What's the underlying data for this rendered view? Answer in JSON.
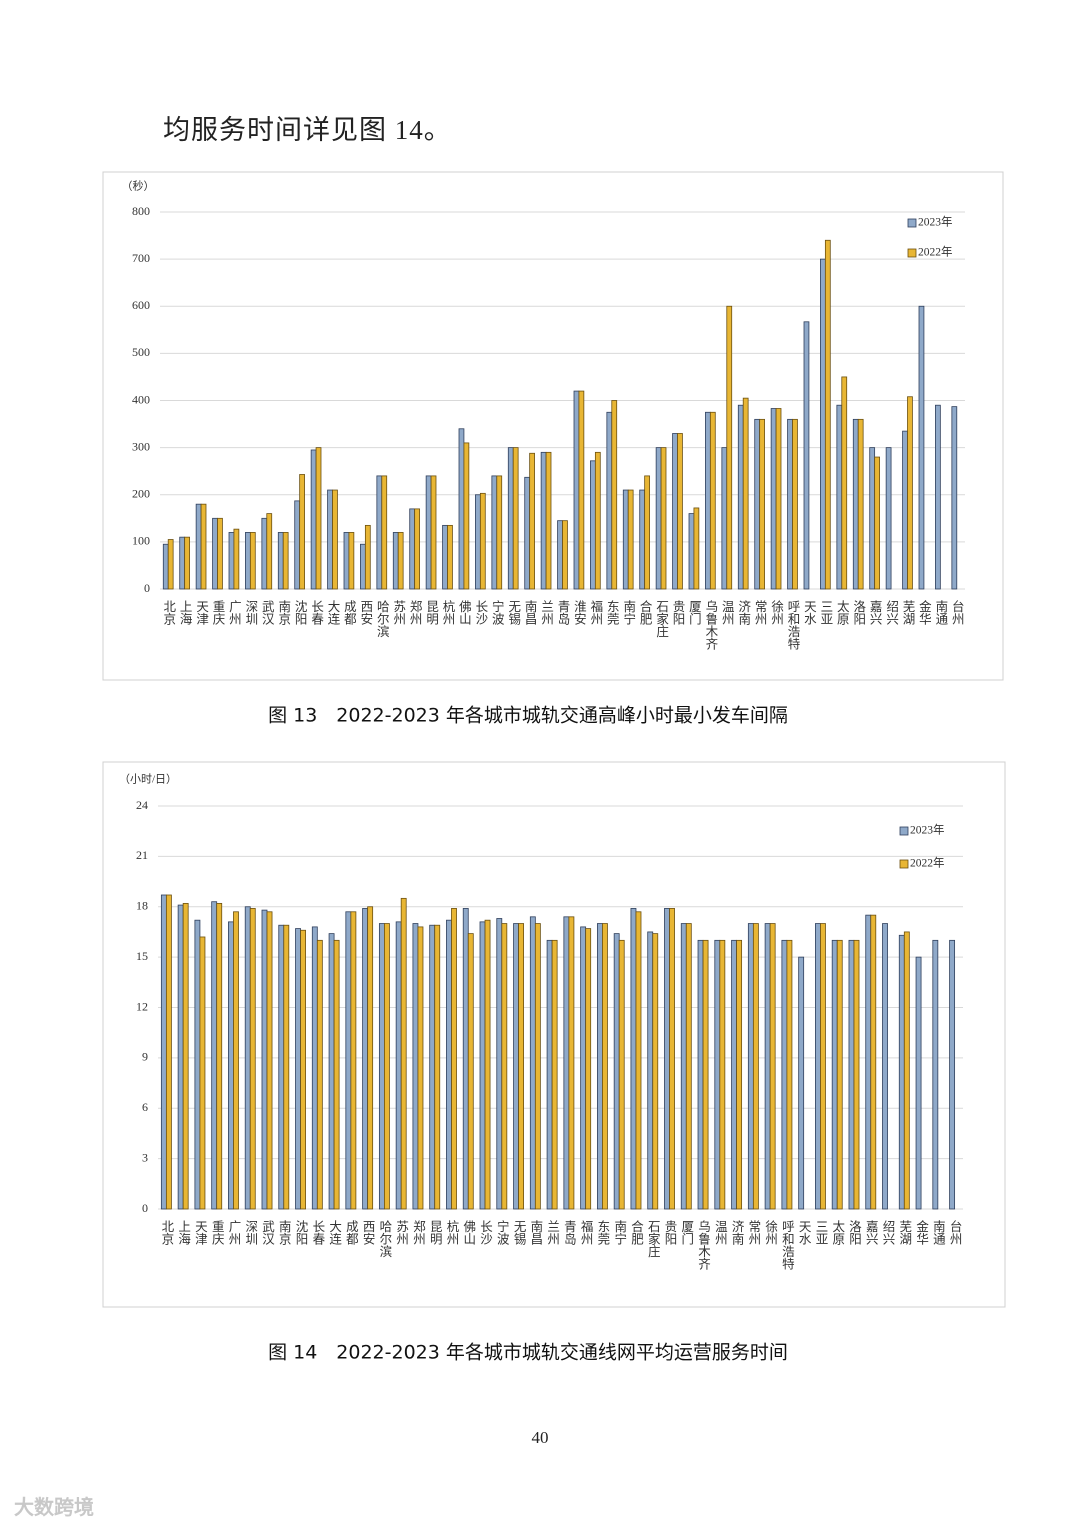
{
  "intro_text": "均服务时间详见图 14。",
  "page_number": "40",
  "watermark": "大数跨境",
  "chart_data": [
    {
      "type": "bar",
      "title": "图 13　2022-2023 年各城市城轨交通高峰小时最小发车间隔",
      "y_label": "（秒）",
      "categories": [
        "北京",
        "上海",
        "天津",
        "重庆",
        "广州",
        "深圳",
        "武汉",
        "南京",
        "沈阳",
        "长春",
        "大连",
        "成都",
        "西安",
        "哈尔滨",
        "苏州",
        "郑州",
        "昆明",
        "杭州",
        "佛山",
        "长沙",
        "宁波",
        "无锡",
        "南昌",
        "兰州",
        "青岛",
        "淮安",
        "福州",
        "东莞",
        "南宁",
        "合肥",
        "石家庄",
        "贵阳",
        "厦门",
        "乌鲁木齐",
        "温州",
        "济南",
        "常州",
        "徐州",
        "呼和浩特",
        "天水",
        "三亚",
        "太原",
        "洛阳",
        "嘉兴",
        "绍兴",
        "芜湖",
        "金华",
        "南通",
        "台州"
      ],
      "series": [
        {
          "name": "2023年",
          "color": "#8fa9c9",
          "values": [
            95,
            110,
            180,
            150,
            120,
            120,
            150,
            120,
            187,
            295,
            210,
            120,
            95,
            240,
            120,
            170,
            240,
            135,
            340,
            200,
            240,
            300,
            237,
            290,
            145,
            420,
            272,
            375,
            210,
            210,
            300,
            330,
            160,
            375,
            300,
            390,
            360,
            383,
            360,
            567,
            700,
            390,
            360,
            300,
            300,
            335,
            600,
            390,
            387
          ]
        },
        {
          "name": "2022年",
          "color": "#e8b634",
          "values": [
            105,
            110,
            180,
            150,
            127,
            120,
            160,
            120,
            243,
            300,
            210,
            120,
            135,
            240,
            120,
            170,
            240,
            135,
            310,
            203,
            240,
            300,
            288,
            290,
            145,
            420,
            290,
            400,
            210,
            240,
            300,
            330,
            172,
            375,
            600,
            405,
            360,
            383,
            360,
            null,
            740,
            450,
            360,
            280,
            null,
            408,
            null,
            null,
            null
          ]
        }
      ],
      "ylim": [
        0,
        800
      ],
      "yticks": [
        0,
        100,
        200,
        300,
        400,
        500,
        600,
        700,
        800
      ],
      "grid": true,
      "legend": "upper right"
    },
    {
      "type": "bar",
      "title": "图 14　2022-2023 年各城市城轨交通线网平均运营服务时间",
      "y_label": "（小时/日）",
      "categories": [
        "北京",
        "上海",
        "天津",
        "重庆",
        "广州",
        "深圳",
        "武汉",
        "南京",
        "沈阳",
        "长春",
        "大连",
        "成都",
        "西安",
        "哈尔滨",
        "苏州",
        "郑州",
        "昆明",
        "杭州",
        "佛山",
        "长沙",
        "宁波",
        "无锡",
        "南昌",
        "兰州",
        "青岛",
        "福州",
        "东莞",
        "南宁",
        "合肥",
        "石家庄",
        "贵阳",
        "厦门",
        "乌鲁木齐",
        "温州",
        "济南",
        "常州",
        "徐州",
        "呼和浩特",
        "天水",
        "三亚",
        "太原",
        "洛阳",
        "嘉兴",
        "绍兴",
        "芜湖",
        "金华",
        "南通",
        "台州"
      ],
      "series": [
        {
          "name": "2023年",
          "color": "#8fa9c9",
          "values": [
            18.7,
            18.1,
            17.2,
            18.3,
            17.1,
            18.0,
            17.8,
            16.9,
            16.7,
            16.8,
            16.4,
            17.7,
            17.9,
            17.0,
            17.1,
            17.0,
            16.9,
            17.2,
            17.9,
            17.1,
            17.3,
            17.0,
            17.4,
            16.0,
            17.4,
            16.8,
            17.0,
            16.4,
            17.9,
            16.5,
            17.9,
            17.0,
            16.0,
            16.0,
            16.0,
            17.0,
            17.0,
            16.0,
            15.0,
            17.0,
            16.0,
            16.0,
            17.5,
            17.0,
            16.3,
            15.0,
            16.0,
            16.0
          ]
        },
        {
          "name": "2022年",
          "color": "#e8b634",
          "values": [
            18.7,
            18.2,
            16.2,
            18.2,
            17.7,
            17.9,
            17.7,
            16.9,
            16.6,
            16.0,
            16.0,
            17.7,
            18.0,
            17.0,
            18.5,
            16.8,
            16.9,
            17.9,
            16.4,
            17.2,
            17.0,
            17.0,
            17.0,
            16.0,
            17.4,
            16.7,
            17.0,
            16.0,
            17.7,
            16.4,
            17.9,
            17.0,
            16.0,
            16.0,
            16.0,
            17.0,
            17.0,
            16.0,
            null,
            17.0,
            16.0,
            16.0,
            17.5,
            null,
            16.5,
            null,
            null,
            null
          ]
        }
      ],
      "ylim": [
        0,
        24
      ],
      "yticks": [
        0,
        3,
        6,
        9,
        12,
        15,
        18,
        21,
        24
      ],
      "grid": true,
      "legend": "upper right"
    }
  ]
}
